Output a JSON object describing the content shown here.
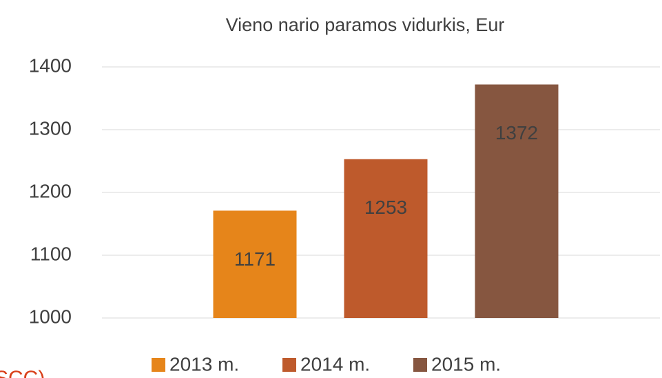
{
  "chart_data": {
    "type": "bar",
    "title": "Vieno nario paramos vidurkis, Eur",
    "series": [
      {
        "name": "2013 m.",
        "color": "#E6851A",
        "values": [
          1171
        ]
      },
      {
        "name": "2014 m.",
        "color": "#BE5A2C",
        "values": [
          1253
        ]
      },
      {
        "name": "2015 m.",
        "color": "#865640",
        "values": [
          1372
        ]
      }
    ],
    "ylim": [
      1000,
      1400
    ],
    "yticks": [
      1000,
      1100,
      1200,
      1300,
      1400
    ],
    "grid": true,
    "legend": "bottom",
    "annotation": "SCC)."
  }
}
